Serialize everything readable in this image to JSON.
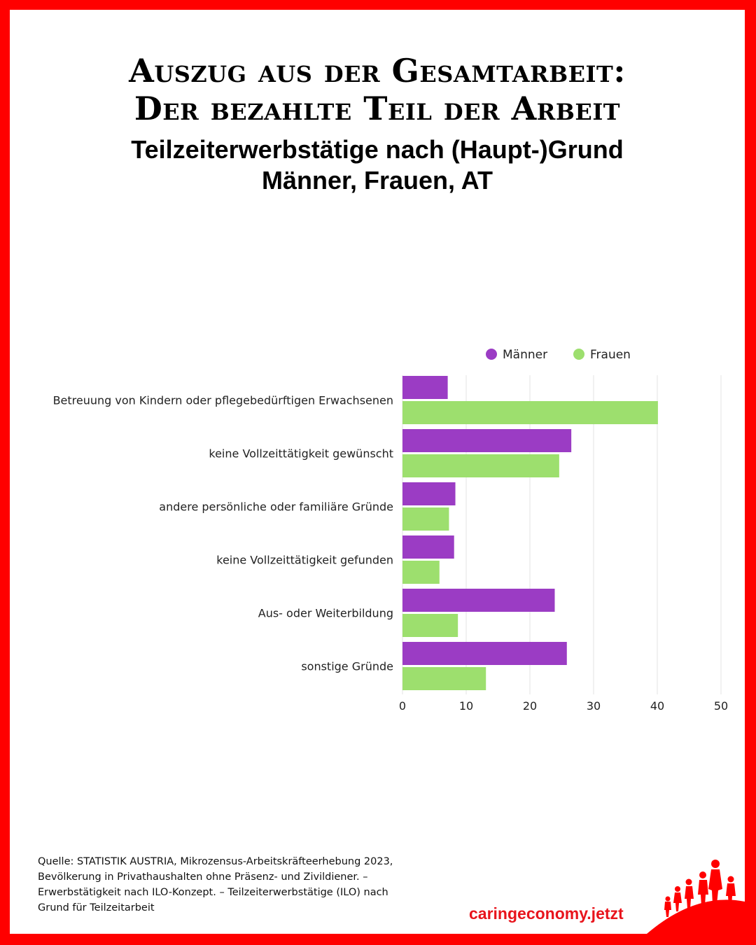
{
  "header": {
    "title_line1": "Auszug aus der Gesamtarbeit:",
    "title_line2": "Der bezahlte Teil der Arbeit",
    "subtitle_line1": "Teilzeiterwerbstätige nach (Haupt-)Grund",
    "subtitle_line2": "Männer, Frauen, AT"
  },
  "chart_data": {
    "type": "bar",
    "orientation": "horizontal",
    "categories": [
      "Betreuung von Kindern oder pflegebedürftigen Erwachsenen",
      "keine Vollzeittätigkeit gewünscht",
      "andere persönliche oder familiäre Gründe",
      "keine Vollzeittätigkeit gefunden",
      "Aus- oder Weiterbildung",
      "sonstige Gründe"
    ],
    "series": [
      {
        "name": "Männer",
        "color": "#9b3cc4",
        "values": [
          7.1,
          26.5,
          8.3,
          8.1,
          23.9,
          25.8
        ]
      },
      {
        "name": "Frauen",
        "color": "#9ddf6e",
        "values": [
          40.1,
          24.6,
          7.3,
          5.8,
          8.7,
          13.1
        ]
      }
    ],
    "xlim": [
      0,
      50
    ],
    "xticks": [
      0,
      10,
      20,
      30,
      40,
      50
    ],
    "grid": true,
    "legend_position": "top-right"
  },
  "footer": {
    "source_line1": "Quelle: STATISTIK AUSTRIA, Mikrozensus-Arbeitskräfteerhebung 2023,",
    "source_line2": "Bevölkerung in Privathaushalten ohne Präsenz- und Zivildiener. –",
    "source_line3": "Erwerbstätigkeit nach ILO-Konzept. – Teilzeiterwerbstätige (ILO) nach",
    "source_line4": "Grund für Teilzeitarbeit",
    "brand": "caringeconomy.jetzt"
  },
  "colors": {
    "frame": "#ff0000",
    "brand": "#e8141c"
  },
  "logo_icon": "people-family-silhouette-icon"
}
